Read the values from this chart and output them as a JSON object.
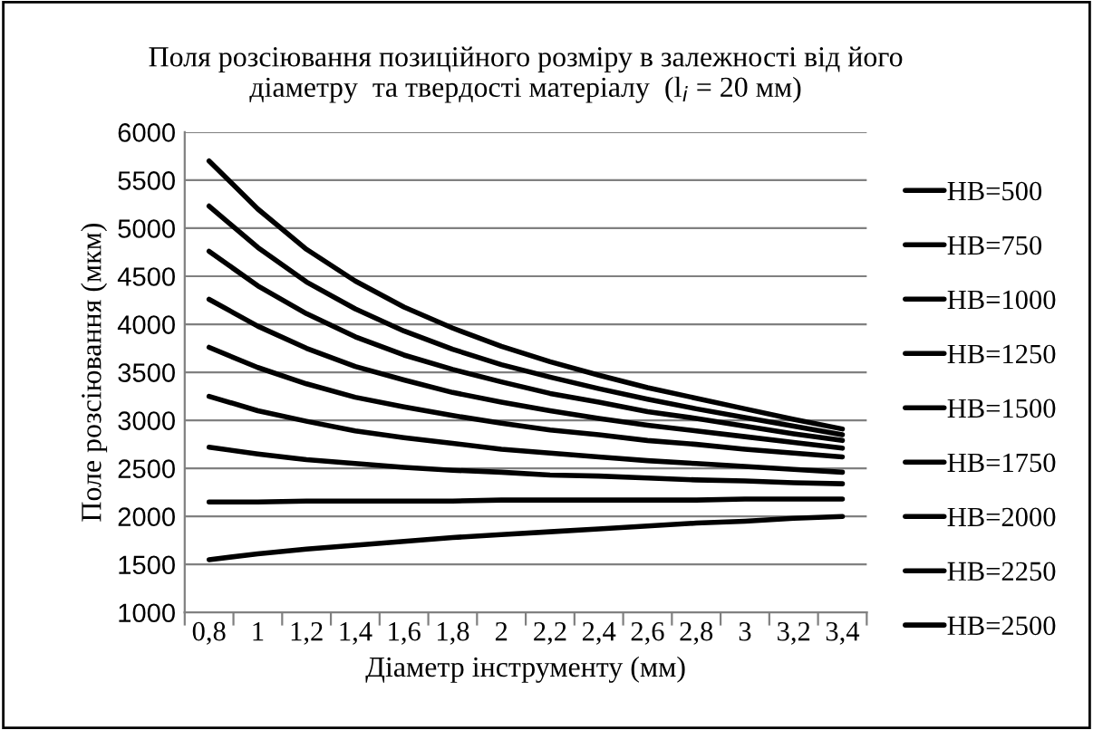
{
  "chart_data": {
    "type": "line",
    "title": "Поля розсіювання позиційного розміру в залежності від його\nдіаметру  та твердості матеріалу  (l$_{i}$ = 20 мм)",
    "xlabel": "Діаметр інструменту (мм)",
    "ylabel": "Поле розсіювання (мкм)",
    "categories": [
      "0,8",
      "1",
      "1,2",
      "1,4",
      "1,6",
      "1,8",
      "2",
      "2,2",
      "2,4",
      "2,6",
      "2,8",
      "3",
      "3,2",
      "3,4"
    ],
    "series": [
      {
        "name": "HB=500",
        "color": "#000000",
        "values": [
          5700,
          5200,
          4780,
          4450,
          4180,
          3960,
          3770,
          3610,
          3470,
          3340,
          3230,
          3120,
          3010,
          2910
        ]
      },
      {
        "name": "HB=750",
        "color": "#000000",
        "values": [
          5230,
          4800,
          4440,
          4160,
          3930,
          3740,
          3580,
          3450,
          3330,
          3220,
          3120,
          3030,
          2940,
          2850
        ]
      },
      {
        "name": "HB=1000",
        "color": "#000000",
        "values": [
          4760,
          4400,
          4110,
          3870,
          3680,
          3530,
          3400,
          3280,
          3190,
          3090,
          3020,
          2940,
          2860,
          2790
        ]
      },
      {
        "name": "HB=1250",
        "color": "#000000",
        "values": [
          4260,
          3980,
          3750,
          3560,
          3420,
          3290,
          3190,
          3100,
          3020,
          2950,
          2890,
          2830,
          2770,
          2710
        ]
      },
      {
        "name": "HB=1500",
        "color": "#000000",
        "values": [
          3760,
          3550,
          3380,
          3240,
          3140,
          3050,
          2970,
          2900,
          2850,
          2790,
          2750,
          2700,
          2660,
          2620
        ]
      },
      {
        "name": "HB=1750",
        "color": "#000000",
        "values": [
          3250,
          3100,
          2990,
          2890,
          2820,
          2760,
          2700,
          2660,
          2620,
          2580,
          2550,
          2520,
          2490,
          2460
        ]
      },
      {
        "name": "HB=2000",
        "color": "#000000",
        "values": [
          2720,
          2650,
          2590,
          2550,
          2510,
          2480,
          2460,
          2430,
          2420,
          2400,
          2380,
          2370,
          2350,
          2340
        ]
      },
      {
        "name": "HB=2250",
        "color": "#000000",
        "values": [
          2150,
          2150,
          2160,
          2160,
          2160,
          2160,
          2170,
          2170,
          2170,
          2170,
          2170,
          2180,
          2180,
          2180
        ]
      },
      {
        "name": "HB=2500",
        "color": "#000000",
        "values": [
          1550,
          1610,
          1660,
          1700,
          1740,
          1780,
          1810,
          1840,
          1870,
          1900,
          1930,
          1950,
          1980,
          2000
        ]
      }
    ],
    "ylim": [
      1000,
      6000
    ],
    "yticks": [
      1000,
      1500,
      2000,
      2500,
      3000,
      3500,
      4000,
      4500,
      5000,
      5500,
      6000
    ],
    "grid": "y",
    "legend": "right",
    "marker": "none",
    "line_style": "solid"
  }
}
